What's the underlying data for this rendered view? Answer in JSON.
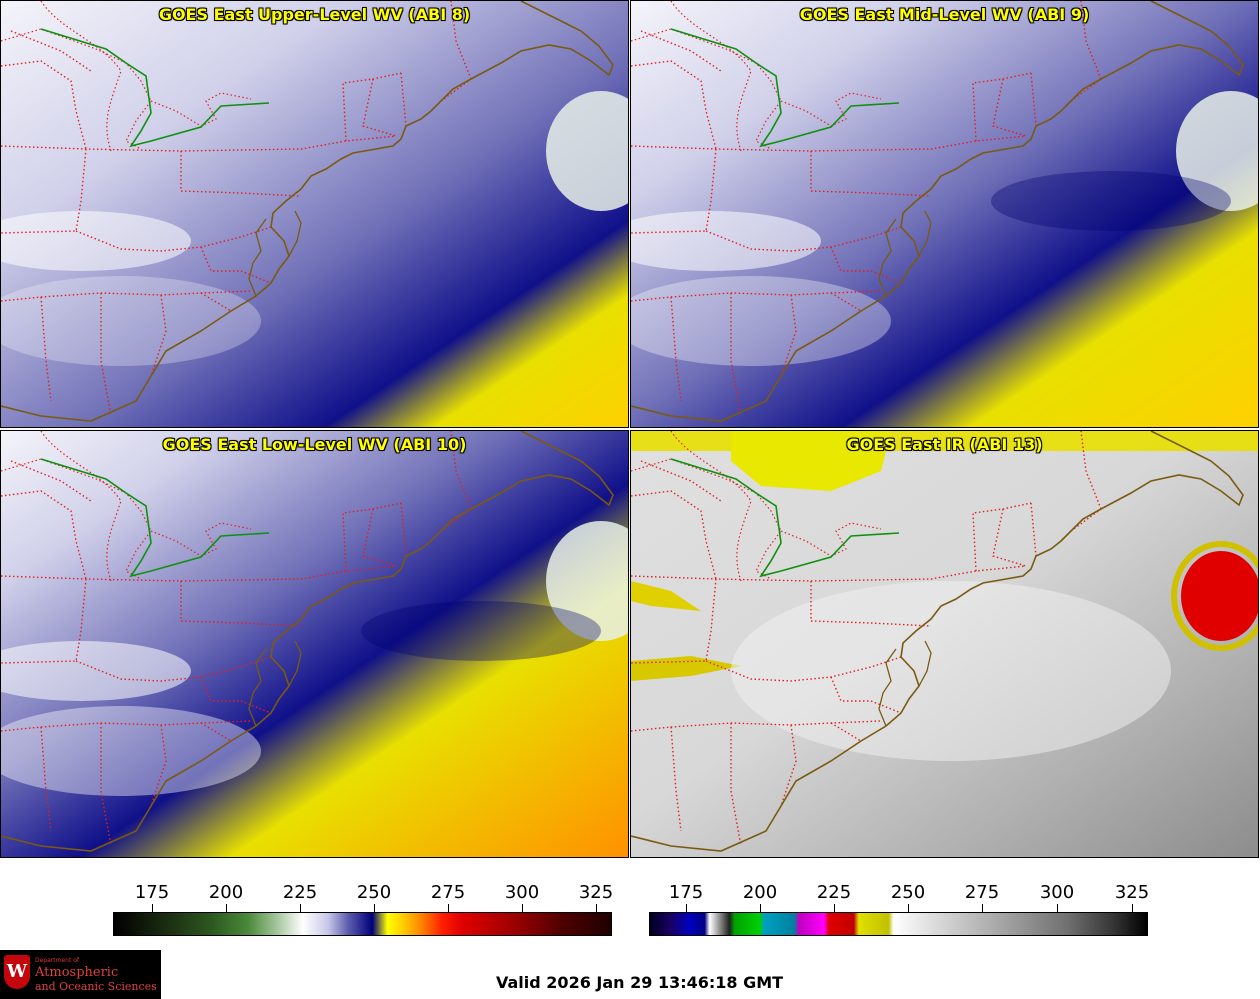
{
  "panels": [
    {
      "title": "GOES East Upper-Level WV (ABI 8)",
      "scheme": "wv",
      "dryness": 0.15
    },
    {
      "title": "GOES East Mid-Level WV (ABI 9)",
      "scheme": "wv",
      "dryness": 0.45
    },
    {
      "title": "GOES East Low-Level WV (ABI 10)",
      "scheme": "wv",
      "dryness": 0.8
    },
    {
      "title": "GOES East IR (ABI 13)",
      "scheme": "ir",
      "dryness": 0.0
    }
  ],
  "colorbars": [
    {
      "name": "wv-colorbar",
      "ticks": [
        "175",
        "200",
        "225",
        "250",
        "275",
        "300",
        "325"
      ]
    },
    {
      "name": "ir-colorbar",
      "ticks": [
        "175",
        "200",
        "225",
        "250",
        "275",
        "300",
        "325"
      ]
    }
  ],
  "logo": {
    "line1": "Department of",
    "line2": "Atmospheric",
    "line3": "and Oceanic Sciences",
    "letter": "W"
  },
  "valid_time": "Valid 2026 Jan 29 13:46:18 GMT",
  "colors": {
    "title_text": "#ffff00",
    "state_borders": "#e02020",
    "coastline": "#7a5a10",
    "border_green": "#109010"
  }
}
